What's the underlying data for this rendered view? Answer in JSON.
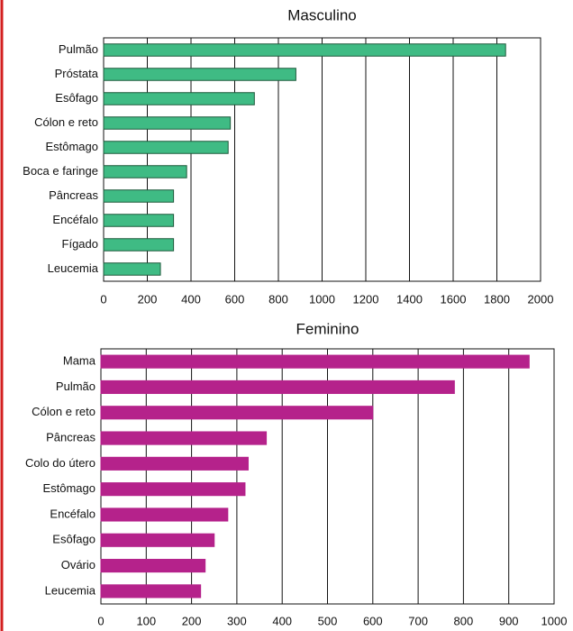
{
  "chart_data": [
    {
      "type": "bar",
      "orientation": "horizontal",
      "title": "Masculino",
      "categories": [
        "Pulmão",
        "Próstata",
        "Esôfago",
        "Cólon e reto",
        "Estômago",
        "Boca e faringe",
        "Pâncreas",
        "Encéfalo",
        "Fígado",
        "Leucemia"
      ],
      "values": [
        1840,
        880,
        690,
        580,
        570,
        380,
        320,
        320,
        320,
        260
      ],
      "color": "#3fbb84",
      "edge_color": "#1f5a3c",
      "xlim": [
        0,
        2000
      ],
      "xticks": [
        0,
        200,
        400,
        600,
        800,
        1000,
        1200,
        1400,
        1600,
        1800,
        2000
      ],
      "grid": true
    },
    {
      "type": "bar",
      "orientation": "horizontal",
      "title": "Feminino",
      "categories": [
        "Mama",
        "Pulmão",
        "Cólon e reto",
        "Pâncreas",
        "Colo do útero",
        "Estômago",
        "Encéfalo",
        "Esôfago",
        "Ovário",
        "Leucemia"
      ],
      "values": [
        945,
        780,
        600,
        365,
        325,
        318,
        280,
        250,
        230,
        220
      ],
      "color": "#b5228b",
      "edge_color": "#b5228b",
      "xlim": [
        0,
        1000
      ],
      "xticks": [
        0,
        100,
        200,
        300,
        400,
        500,
        600,
        700,
        800,
        900,
        1000
      ],
      "grid": true
    }
  ]
}
